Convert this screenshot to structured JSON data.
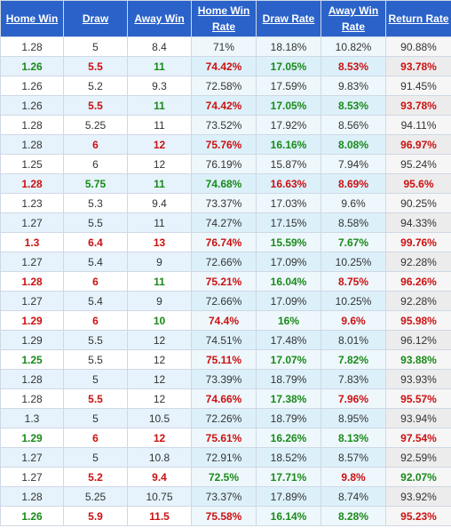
{
  "headers": [
    "Home Win",
    "Draw",
    "Away Win",
    "Home Win Rate",
    "Draw Rate",
    "Away Win Rate",
    "Return Rate"
  ],
  "colors": {
    "header_bg": "#2a62c9",
    "green": "#1a8a1a",
    "red": "#cc1111"
  },
  "rows": [
    [
      "1.28",
      "5",
      "8.4",
      "71%",
      "18.18%",
      "10.82%",
      "90.88%"
    ],
    [
      "1.26",
      "5.5",
      "11",
      "74.42%",
      "17.05%",
      "8.53%",
      "93.78%"
    ],
    [
      "1.26",
      "5.2",
      "9.3",
      "72.58%",
      "17.59%",
      "9.83%",
      "91.45%"
    ],
    [
      "1.26",
      "5.5",
      "11",
      "74.42%",
      "17.05%",
      "8.53%",
      "93.78%"
    ],
    [
      "1.28",
      "5.25",
      "11",
      "73.52%",
      "17.92%",
      "8.56%",
      "94.11%"
    ],
    [
      "1.28",
      "6",
      "12",
      "75.76%",
      "16.16%",
      "8.08%",
      "96.97%"
    ],
    [
      "1.25",
      "6",
      "12",
      "76.19%",
      "15.87%",
      "7.94%",
      "95.24%"
    ],
    [
      "1.28",
      "5.75",
      "11",
      "74.68%",
      "16.63%",
      "8.69%",
      "95.6%"
    ],
    [
      "1.23",
      "5.3",
      "9.4",
      "73.37%",
      "17.03%",
      "9.6%",
      "90.25%"
    ],
    [
      "1.27",
      "5.5",
      "11",
      "74.27%",
      "17.15%",
      "8.58%",
      "94.33%"
    ],
    [
      "1.3",
      "6.4",
      "13",
      "76.74%",
      "15.59%",
      "7.67%",
      "99.76%"
    ],
    [
      "1.27",
      "5.4",
      "9",
      "72.66%",
      "17.09%",
      "10.25%",
      "92.28%"
    ],
    [
      "1.28",
      "6",
      "11",
      "75.21%",
      "16.04%",
      "8.75%",
      "96.26%"
    ],
    [
      "1.27",
      "5.4",
      "9",
      "72.66%",
      "17.09%",
      "10.25%",
      "92.28%"
    ],
    [
      "1.29",
      "6",
      "10",
      "74.4%",
      "16%",
      "9.6%",
      "95.98%"
    ],
    [
      "1.29",
      "5.5",
      "12",
      "74.51%",
      "17.48%",
      "8.01%",
      "96.12%"
    ],
    [
      "1.25",
      "5.5",
      "12",
      "75.11%",
      "17.07%",
      "7.82%",
      "93.88%"
    ],
    [
      "1.28",
      "5",
      "12",
      "73.39%",
      "18.79%",
      "7.83%",
      "93.93%"
    ],
    [
      "1.28",
      "5.5",
      "12",
      "74.66%",
      "17.38%",
      "7.96%",
      "95.57%"
    ],
    [
      "1.3",
      "5",
      "10.5",
      "72.26%",
      "18.79%",
      "8.95%",
      "93.94%"
    ],
    [
      "1.29",
      "6",
      "12",
      "75.61%",
      "16.26%",
      "8.13%",
      "97.54%"
    ],
    [
      "1.27",
      "5",
      "10.8",
      "72.91%",
      "18.52%",
      "8.57%",
      "92.59%"
    ],
    [
      "1.27",
      "5.2",
      "9.4",
      "72.5%",
      "17.71%",
      "9.8%",
      "92.07%"
    ],
    [
      "1.28",
      "5.25",
      "10.75",
      "73.37%",
      "17.89%",
      "8.74%",
      "93.92%"
    ],
    [
      "1.26",
      "5.9",
      "11.5",
      "75.58%",
      "16.14%",
      "8.28%",
      "95.23%"
    ]
  ],
  "row_colors": [
    [
      "",
      "",
      "",
      "",
      "",
      "",
      ""
    ],
    [
      "green",
      "red",
      "green",
      "red",
      "green",
      "red",
      "red"
    ],
    [
      "",
      "",
      "",
      "",
      "",
      "",
      ""
    ],
    [
      "",
      "red",
      "green",
      "red",
      "green",
      "green",
      "red"
    ],
    [
      "",
      "",
      "",
      "",
      "",
      "",
      ""
    ],
    [
      "",
      "red",
      "red",
      "red",
      "green",
      "green",
      "red"
    ],
    [
      "",
      "",
      "",
      "",
      "",
      "",
      ""
    ],
    [
      "red",
      "green",
      "green",
      "green",
      "red",
      "red",
      "red"
    ],
    [
      "",
      "",
      "",
      "",
      "",
      "",
      ""
    ],
    [
      "",
      "",
      "",
      "",
      "",
      "",
      ""
    ],
    [
      "red",
      "red",
      "red",
      "red",
      "green",
      "green",
      "red"
    ],
    [
      "",
      "",
      "",
      "",
      "",
      "",
      ""
    ],
    [
      "red",
      "red",
      "green",
      "red",
      "green",
      "red",
      "red"
    ],
    [
      "",
      "",
      "",
      "",
      "",
      "",
      ""
    ],
    [
      "red",
      "red",
      "green",
      "red",
      "green",
      "red",
      "red"
    ],
    [
      "",
      "",
      "",
      "",
      "",
      "",
      ""
    ],
    [
      "green",
      "",
      "",
      "red",
      "green",
      "green",
      "green"
    ],
    [
      "",
      "",
      "",
      "",
      "",
      "",
      ""
    ],
    [
      "",
      "red",
      "",
      "red",
      "green",
      "red",
      "red"
    ],
    [
      "",
      "",
      "",
      "",
      "",
      "",
      ""
    ],
    [
      "green",
      "red",
      "red",
      "red",
      "green",
      "green",
      "red"
    ],
    [
      "",
      "",
      "",
      "",
      "",
      "",
      ""
    ],
    [
      "",
      "red",
      "red",
      "green",
      "green",
      "red",
      "green"
    ],
    [
      "",
      "",
      "",
      "",
      "",
      "",
      ""
    ],
    [
      "green",
      "red",
      "red",
      "red",
      "green",
      "green",
      "red"
    ]
  ]
}
